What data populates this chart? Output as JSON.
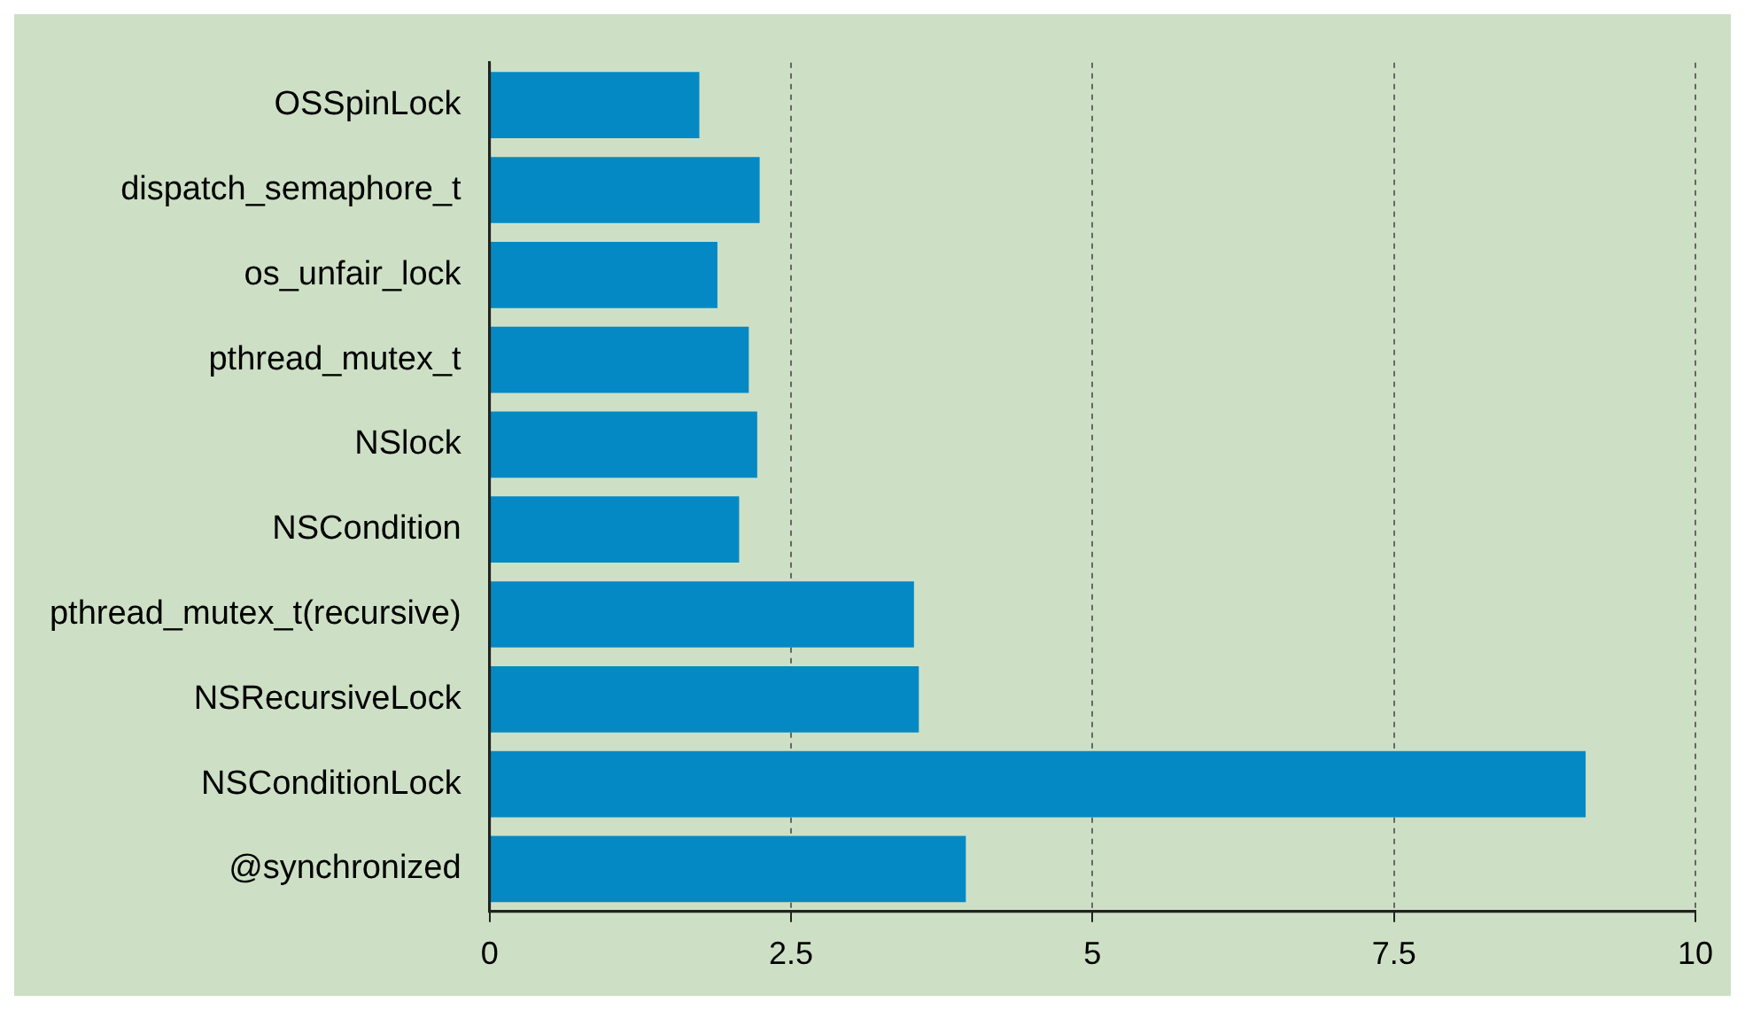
{
  "chart_data": {
    "type": "bar",
    "orientation": "horizontal",
    "categories": [
      "OSSpinLock",
      "dispatch_semaphore_t",
      "os_unfair_lock",
      "pthread_mutex_t",
      "NSlock",
      "NSCondition",
      "pthread_mutex_t(recursive)",
      "NSRecursiveLock",
      "NSConditionLock",
      "@synchronized"
    ],
    "values": [
      1.74,
      2.24,
      1.89,
      2.15,
      2.22,
      2.07,
      3.52,
      3.56,
      9.09,
      3.95
    ],
    "color": "#0589c4",
    "xlim": [
      0,
      10
    ],
    "xticks": [
      0,
      2.5,
      5,
      7.5,
      10
    ],
    "grid": "x",
    "legend": false
  }
}
